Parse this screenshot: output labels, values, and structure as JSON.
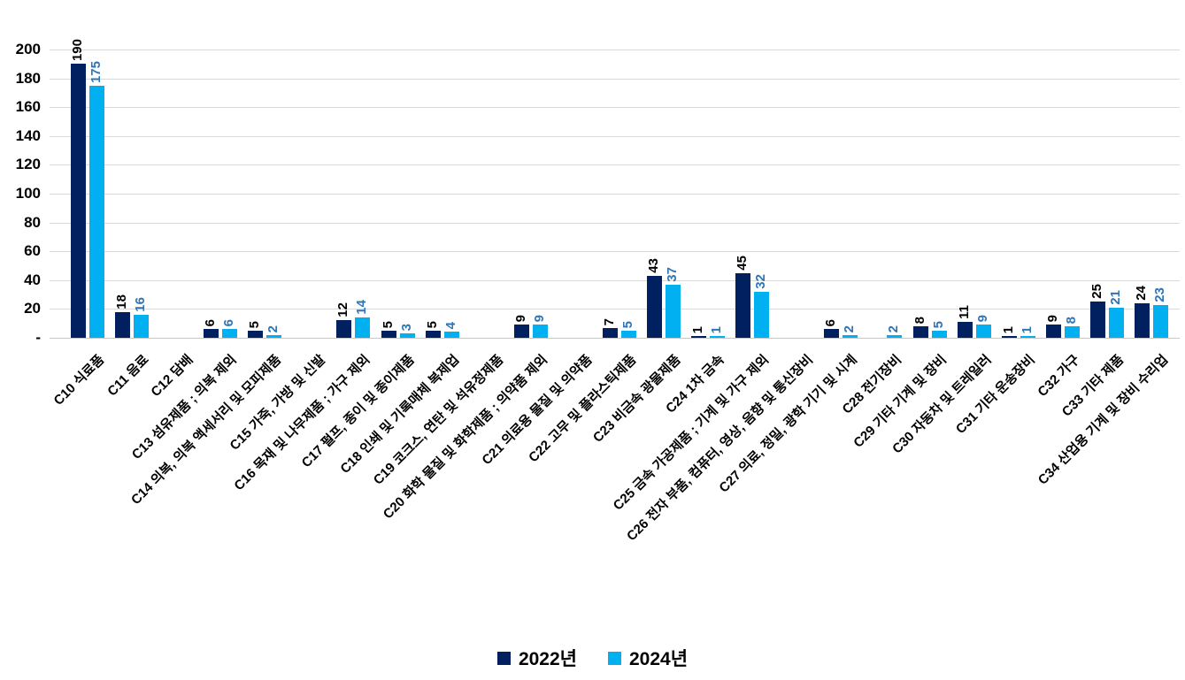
{
  "chart_data": {
    "type": "bar",
    "categories": [
      "C10 식료품",
      "C11 음료",
      "C12 담배",
      "C13 섬유제품 ; 의복 제외",
      "C14 의복, 의복 액세서리 및 모피제품",
      "C15 가죽, 가방 및 신발",
      "C16 목재 및 나무제품 ; 가구 제외",
      "C17 펄프, 종이 및 종이제품",
      "C18 인쇄 및 기록매체 복제업",
      "C19 코크스, 연탄 및 석유정제품",
      "C20 화학 물질 및 화학제품 ; 의약품 제외",
      "C21 의료용 물질 및 의약품",
      "C22 고무 및 플라스틱제품",
      "C23 비금속 광물제품",
      "C24 1차 금속",
      "C25 금속 가공제품 ; 기계 및 가구 제외",
      "C26 전자 부품, 컴퓨터, 영상, 음향 및 통신장비",
      "C27 의료, 정밀, 광학 기기 및 시계",
      "C28 전기장비",
      "C29 기타 기계 및 장비",
      "C30 자동차 및 트레일러",
      "C31 기타 운송장비",
      "C32 가구",
      "C33 기타 제품",
      "C34 산업용 기계 및 장비 수리업"
    ],
    "series": [
      {
        "name": "2022년",
        "color": "#002060",
        "label_color": "#000000",
        "values": [
          190,
          18,
          null,
          6,
          5,
          null,
          12,
          5,
          5,
          null,
          9,
          null,
          7,
          43,
          1,
          45,
          null,
          6,
          null,
          8,
          11,
          1,
          9,
          25,
          24
        ]
      },
      {
        "name": "2024년",
        "color": "#00B0F0",
        "label_color": "#2E75B6",
        "values": [
          175,
          16,
          null,
          6,
          2,
          null,
          14,
          3,
          4,
          null,
          9,
          null,
          5,
          37,
          1,
          32,
          null,
          2,
          2,
          5,
          9,
          1,
          8,
          21,
          23
        ]
      }
    ],
    "ylim": [
      0,
      200
    ],
    "ytick_interval": 20,
    "ytick_labels": [
      "-",
      "20",
      "40",
      "60",
      "80",
      "100",
      "120",
      "140",
      "160",
      "180",
      "200"
    ],
    "grid": true,
    "gridline_color": "#D9D9D9",
    "legend_position": "bottom",
    "x_label_rotation_deg": 45,
    "value_labels_rotated": true
  }
}
